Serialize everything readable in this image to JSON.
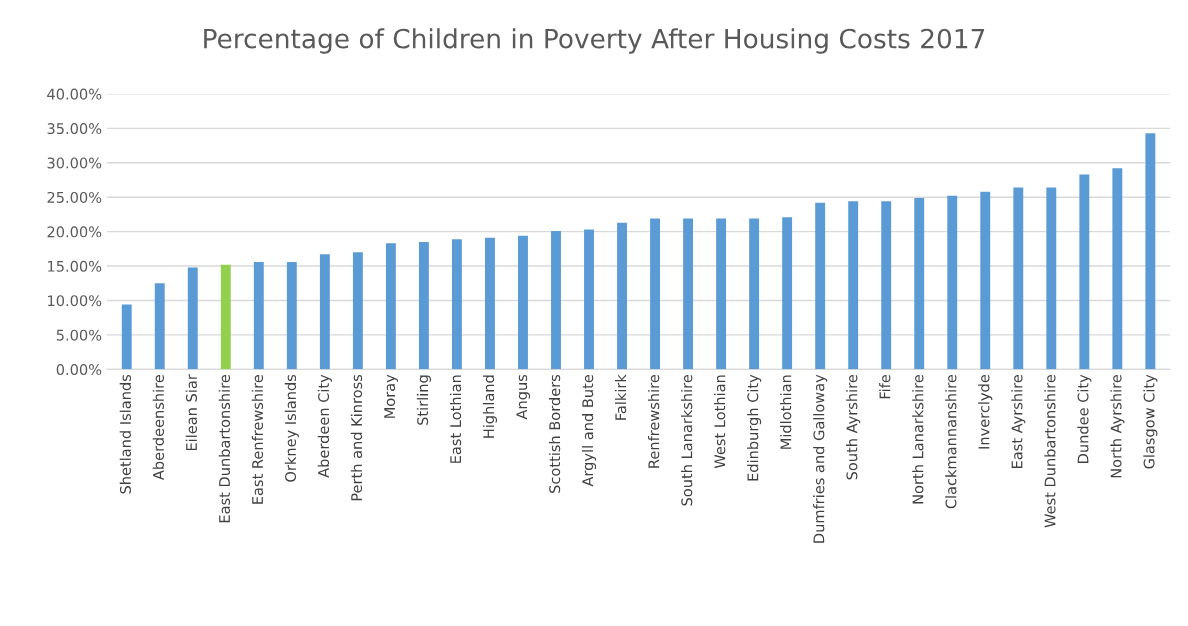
{
  "chart_data": {
    "type": "bar",
    "title": "Percentage of Children in Poverty After Housing Costs 2017",
    "categories": [
      "Shetland Islands",
      "Aberdeenshire",
      "Eilean Siar",
      "East Dunbartonshire",
      "East Renfrewshire",
      "Orkney Islands",
      "Aberdeen City",
      "Perth and Kinross",
      "Moray",
      "Stirling",
      "East Lothian",
      "Highland",
      "Angus",
      "Scottish Borders",
      "Argyll and Bute",
      "Falkirk",
      "Renfrewshire",
      "South Lanarkshire",
      "West Lothian",
      "Edinburgh City",
      "Midlothian",
      "Dumfries and Galloway",
      "South Ayrshire",
      "Fife",
      "North Lanarkshire",
      "Clackmannanshire",
      "Inverclyde",
      "East Ayrshire",
      "West Dunbartonshire",
      "Dundee City",
      "North Ayrshire",
      "Glasgow City"
    ],
    "values": [
      9.4,
      12.5,
      14.8,
      15.2,
      15.6,
      15.6,
      16.7,
      17.0,
      18.3,
      18.5,
      18.9,
      19.1,
      19.4,
      20.1,
      20.3,
      21.3,
      21.9,
      21.9,
      21.9,
      21.9,
      22.1,
      24.2,
      24.4,
      24.4,
      24.9,
      25.2,
      25.8,
      26.4,
      26.4,
      28.3,
      29.2,
      34.3
    ],
    "colors": [
      "#5b9bd5",
      "#5b9bd5",
      "#5b9bd5",
      "#92d050",
      "#5b9bd5",
      "#5b9bd5",
      "#5b9bd5",
      "#5b9bd5",
      "#5b9bd5",
      "#5b9bd5",
      "#5b9bd5",
      "#5b9bd5",
      "#5b9bd5",
      "#5b9bd5",
      "#5b9bd5",
      "#5b9bd5",
      "#5b9bd5",
      "#5b9bd5",
      "#5b9bd5",
      "#5b9bd5",
      "#5b9bd5",
      "#5b9bd5",
      "#5b9bd5",
      "#5b9bd5",
      "#5b9bd5",
      "#5b9bd5",
      "#5b9bd5",
      "#5b9bd5",
      "#5b9bd5",
      "#5b9bd5",
      "#5b9bd5",
      "#5b9bd5"
    ],
    "ylim": [
      0,
      40
    ],
    "yticks": [
      {
        "value": 0,
        "label": "0.00%"
      },
      {
        "value": 5,
        "label": "5.00%"
      },
      {
        "value": 10,
        "label": "10.00%"
      },
      {
        "value": 15,
        "label": "15.00%"
      },
      {
        "value": 20,
        "label": "20.00%"
      },
      {
        "value": 25,
        "label": "25.00%"
      },
      {
        "value": 30,
        "label": "30.00%"
      },
      {
        "value": 35,
        "label": "35.00%"
      },
      {
        "value": 40,
        "label": "40.00%"
      }
    ],
    "grid": "y"
  }
}
